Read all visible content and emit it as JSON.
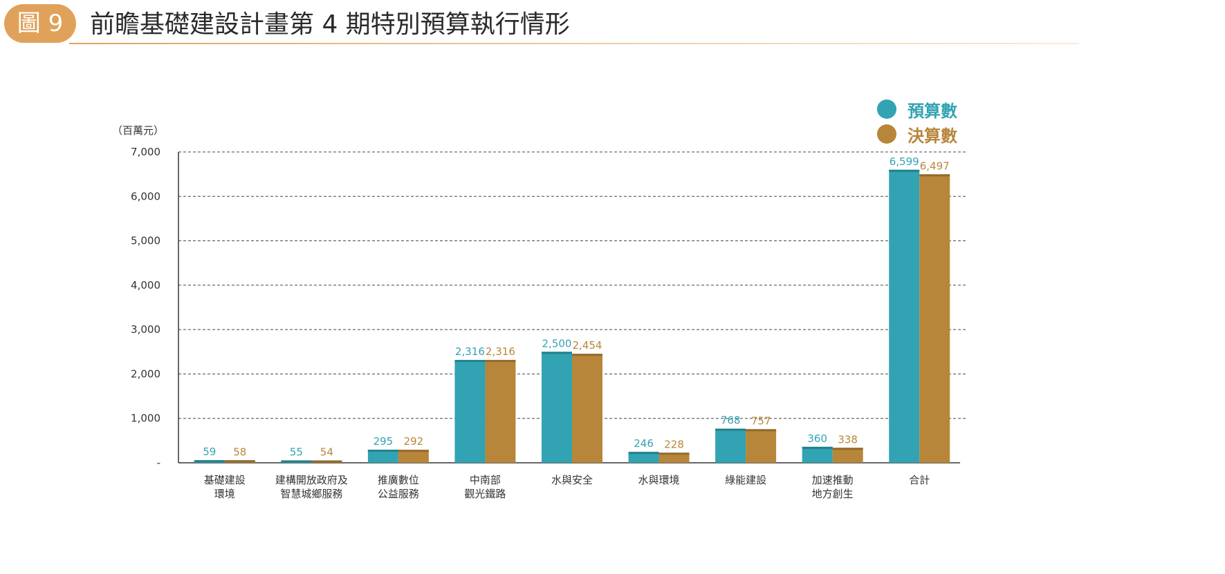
{
  "figure": {
    "badge": "圖 9",
    "title": "前瞻基礎建設計畫第 4 期特別預算執行情形"
  },
  "colors": {
    "budget": "#32a3b2",
    "actual": "#b8863a",
    "badge": "#e0a25a",
    "axis": "#333333",
    "grid": "#444444"
  },
  "chart_data": {
    "type": "bar",
    "unit_label": "（百萬元）",
    "categories": [
      "基礎建設\n環境",
      "建構開放政府及\n智慧城鄉服務",
      "推廣數位\n公益服務",
      "中南部\n觀光鐵路",
      "水與安全",
      "水與環境",
      "綠能建設",
      "加速推動\n地方創生",
      "合計"
    ],
    "series": [
      {
        "name": "預算數",
        "values": [
          59,
          55,
          295,
          2316,
          2500,
          246,
          768,
          360,
          6599
        ]
      },
      {
        "name": "決算數",
        "values": [
          58,
          54,
          292,
          2316,
          2454,
          228,
          757,
          338,
          6497
        ]
      }
    ],
    "data_labels": [
      [
        "59",
        "55",
        "295",
        "2,316",
        "2,500",
        "246",
        "768",
        "360",
        "6,599"
      ],
      [
        "58",
        "54",
        "292",
        "2,316",
        "2,454",
        "228",
        "757",
        "338",
        "6,497"
      ]
    ],
    "ylim": [
      0,
      7000
    ],
    "yticks": [
      0,
      1000,
      2000,
      3000,
      4000,
      5000,
      6000,
      7000
    ],
    "ytick_labels": [
      "-",
      "1,000",
      "2,000",
      "3,000",
      "4,000",
      "5,000",
      "6,000",
      "7,000"
    ],
    "grid": "dashed horizontal",
    "legend_position": "top-right"
  }
}
